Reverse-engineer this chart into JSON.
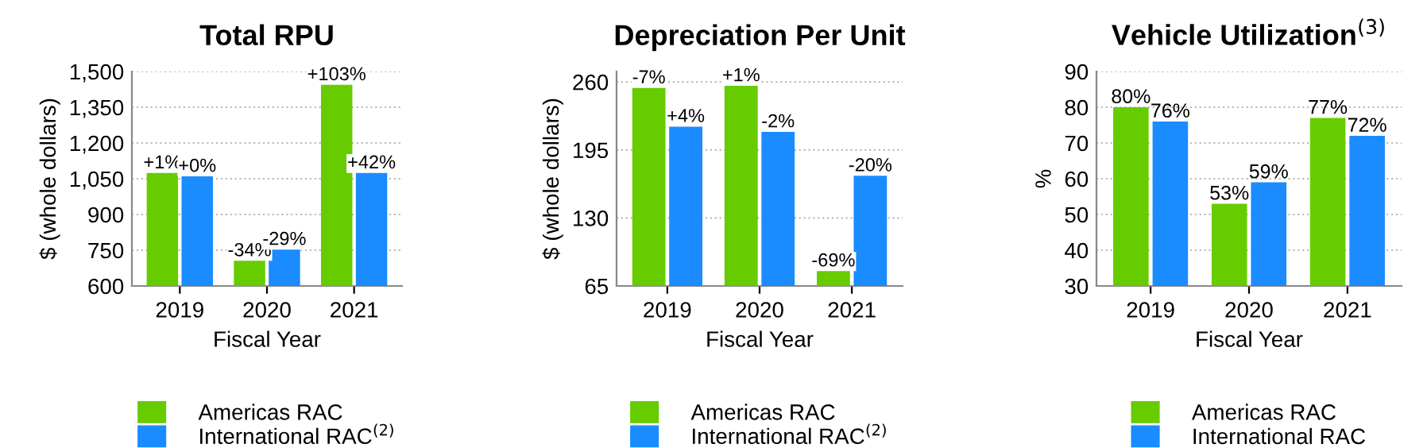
{
  "chart_data": [
    {
      "type": "bar",
      "title": "Total RPU",
      "xlabel": "Fiscal Year",
      "ylabel": "$ (whole dollars)",
      "categories": [
        "2019",
        "2020",
        "2021"
      ],
      "series": [
        {
          "name": "Americas RAC",
          "color": "#66cc00",
          "values": [
            1077,
            709,
            1447
          ]
        },
        {
          "name": "International RAC$^{(2)}$",
          "color": "#1a8cff",
          "values": [
            1063,
            756,
            1077
          ]
        }
      ],
      "annotations": [
        {
          "text": "+1%",
          "x": "2019",
          "y": 1077
        },
        {
          "text": "+0%",
          "x": "2019",
          "y": 1063
        },
        {
          "text": "-34%",
          "x": "2020",
          "y": 709
        },
        {
          "text": "-29%",
          "x": "2020",
          "y": 756
        },
        {
          "text": "+103%",
          "x": "2021",
          "y": 1447
        },
        {
          "text": "+42%",
          "x": "2021",
          "y": 1077
        }
      ],
      "ylim": [
        600,
        1500
      ],
      "yticks": [
        {
          "value": 600,
          "label": "600"
        },
        {
          "value": 750,
          "label": "750"
        },
        {
          "value": 900,
          "label": "900"
        },
        {
          "value": 1050,
          "label": "1,050"
        },
        {
          "value": 1200,
          "label": "1,200"
        },
        {
          "value": 1350,
          "label": "1,350"
        },
        {
          "value": 1500,
          "label": "1,500"
        }
      ],
      "grid": "y",
      "legend": "bottom"
    },
    {
      "type": "bar",
      "title": "Depreciation Per Unit",
      "xlabel": "Fiscal Year",
      "ylabel": "$ (whole dollars)",
      "categories": [
        "2019",
        "2020",
        "2021"
      ],
      "series": [
        {
          "name": "Americas RAC",
          "color": "#66cc00",
          "values": [
            255,
            257,
            80
          ]
        },
        {
          "name": "International RAC$^{(2)}$",
          "color": "#1a8cff",
          "values": [
            218,
            213,
            171
          ]
        }
      ],
      "annotations": [
        {
          "text": "-7%",
          "x": "2019",
          "y": 255
        },
        {
          "text": "+4%",
          "x": "2019",
          "y": 218
        },
        {
          "text": "+1%",
          "x": "2020",
          "y": 257
        },
        {
          "text": "-2%",
          "x": "2020",
          "y": 213
        },
        {
          "text": "-69%",
          "x": "2021",
          "y": 80
        },
        {
          "text": "-20%",
          "x": "2021",
          "y": 171
        }
      ],
      "ylim": [
        65,
        270
      ],
      "yticks": [
        65,
        130,
        195,
        260
      ],
      "grid": "y",
      "legend": "bottom"
    },
    {
      "type": "bar",
      "title": "Vehicle Utilization$^{(3)}$",
      "xlabel": "Fiscal Year",
      "ylabel": "%",
      "categories": [
        "2019",
        "2020",
        "2021"
      ],
      "series": [
        {
          "name": "Americas RAC",
          "color": "#66cc00",
          "values": [
            80,
            53,
            77
          ],
          "value_labels": [
            "80%",
            "53%",
            "77%"
          ]
        },
        {
          "name": "International RAC",
          "color": "#1a8cff",
          "values": [
            76,
            59,
            72
          ],
          "value_labels": [
            "76%",
            "59%",
            "72%"
          ]
        }
      ],
      "ylim": [
        30,
        90
      ],
      "yticks": [
        30,
        40,
        50,
        60,
        70,
        80,
        90
      ],
      "grid": "y",
      "legend": "bottom"
    }
  ]
}
